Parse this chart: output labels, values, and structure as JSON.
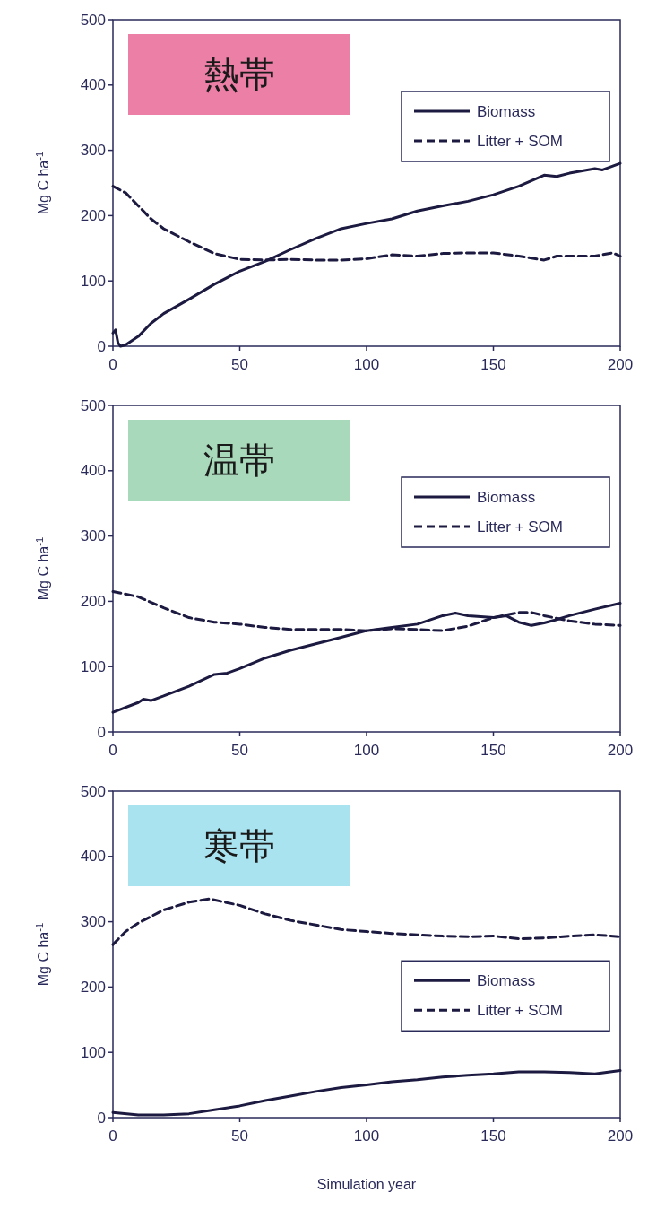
{
  "chart_data": [
    {
      "type": "line",
      "title": "熱帯",
      "ylabel": "Mg C ha$^{-1}$",
      "xlim": [
        0,
        200
      ],
      "xticks": [
        0,
        50,
        100,
        150,
        200
      ],
      "ylim": [
        0,
        500
      ],
      "yticks": [
        0,
        100,
        200,
        300,
        400,
        500
      ],
      "legend": "top right",
      "grid": false,
      "marker": "none",
      "series": [
        {
          "name": "Biomass",
          "color": "#1c1a40",
          "line_style": "solid",
          "x": [
            0,
            1,
            2,
            3,
            5,
            10,
            15,
            20,
            30,
            40,
            50,
            60,
            70,
            80,
            90,
            100,
            110,
            120,
            130,
            140,
            150,
            160,
            170,
            175,
            180,
            190,
            193,
            200
          ],
          "values": [
            20,
            25,
            5,
            0,
            2,
            15,
            35,
            50,
            72,
            95,
            115,
            130,
            148,
            165,
            180,
            188,
            195,
            207,
            215,
            222,
            232,
            245,
            262,
            260,
            265,
            272,
            270,
            280
          ]
        },
        {
          "name": "Litter + SOM",
          "color": "#1c1a40",
          "line_style": "dashed",
          "x": [
            0,
            5,
            10,
            15,
            20,
            30,
            40,
            50,
            60,
            70,
            80,
            90,
            100,
            110,
            120,
            130,
            140,
            150,
            160,
            170,
            175,
            190,
            197,
            200
          ],
          "values": [
            245,
            235,
            215,
            195,
            180,
            160,
            142,
            133,
            132,
            133,
            132,
            132,
            134,
            140,
            138,
            142,
            143,
            143,
            138,
            132,
            138,
            138,
            143,
            138
          ]
        }
      ]
    },
    {
      "type": "line",
      "title": "温帯",
      "ylabel": "Mg C ha$^{-1}$",
      "xlim": [
        0,
        200
      ],
      "xticks": [
        0,
        50,
        100,
        150,
        200
      ],
      "ylim": [
        0,
        500
      ],
      "yticks": [
        0,
        100,
        200,
        300,
        400,
        500
      ],
      "legend": "top right",
      "grid": false,
      "marker": "none",
      "series": [
        {
          "name": "Biomass",
          "color": "#1c1a40",
          "line_style": "solid",
          "x": [
            0,
            10,
            12,
            15,
            20,
            30,
            40,
            45,
            50,
            60,
            70,
            80,
            90,
            95,
            100,
            110,
            120,
            130,
            135,
            140,
            150,
            155,
            160,
            165,
            170,
            175,
            180,
            190,
            200
          ],
          "values": [
            30,
            45,
            50,
            48,
            55,
            70,
            88,
            90,
            97,
            113,
            125,
            135,
            145,
            150,
            155,
            160,
            165,
            178,
            182,
            178,
            175,
            178,
            168,
            163,
            167,
            172,
            178,
            188,
            197
          ]
        },
        {
          "name": "Litter + SOM",
          "color": "#1c1a40",
          "line_style": "dashed",
          "x": [
            0,
            10,
            20,
            30,
            40,
            50,
            60,
            70,
            80,
            90,
            100,
            110,
            120,
            130,
            140,
            150,
            160,
            165,
            170,
            180,
            190,
            200
          ],
          "values": [
            215,
            207,
            190,
            175,
            168,
            165,
            160,
            157,
            157,
            157,
            155,
            158,
            157,
            155,
            162,
            175,
            183,
            183,
            178,
            170,
            165,
            163
          ]
        }
      ]
    },
    {
      "type": "line",
      "title": "寒帯",
      "ylabel": "Mg C ha$^{-1}$",
      "xlabel": "Simulation year",
      "xlim": [
        0,
        200
      ],
      "xticks": [
        0,
        50,
        100,
        150,
        200
      ],
      "ylim": [
        0,
        500
      ],
      "yticks": [
        0,
        100,
        200,
        300,
        400,
        500
      ],
      "legend": "right",
      "grid": false,
      "marker": "none",
      "series": [
        {
          "name": "Biomass",
          "color": "#1c1a40",
          "line_style": "solid",
          "x": [
            0,
            10,
            20,
            30,
            40,
            50,
            60,
            70,
            80,
            90,
            100,
            110,
            120,
            130,
            140,
            150,
            160,
            170,
            180,
            190,
            200
          ],
          "values": [
            8,
            4,
            4,
            6,
            12,
            18,
            26,
            33,
            40,
            46,
            50,
            55,
            58,
            62,
            65,
            67,
            70,
            70,
            69,
            67,
            72
          ]
        },
        {
          "name": "Litter + SOM",
          "color": "#1c1a40",
          "line_style": "dashed",
          "x": [
            0,
            5,
            10,
            20,
            30,
            38,
            50,
            60,
            70,
            80,
            90,
            100,
            110,
            120,
            130,
            140,
            150,
            160,
            170,
            180,
            190,
            200
          ],
          "values": [
            265,
            285,
            298,
            318,
            330,
            335,
            325,
            312,
            302,
            295,
            288,
            285,
            282,
            280,
            278,
            277,
            278,
            274,
            275,
            278,
            280,
            277
          ]
        }
      ]
    }
  ]
}
